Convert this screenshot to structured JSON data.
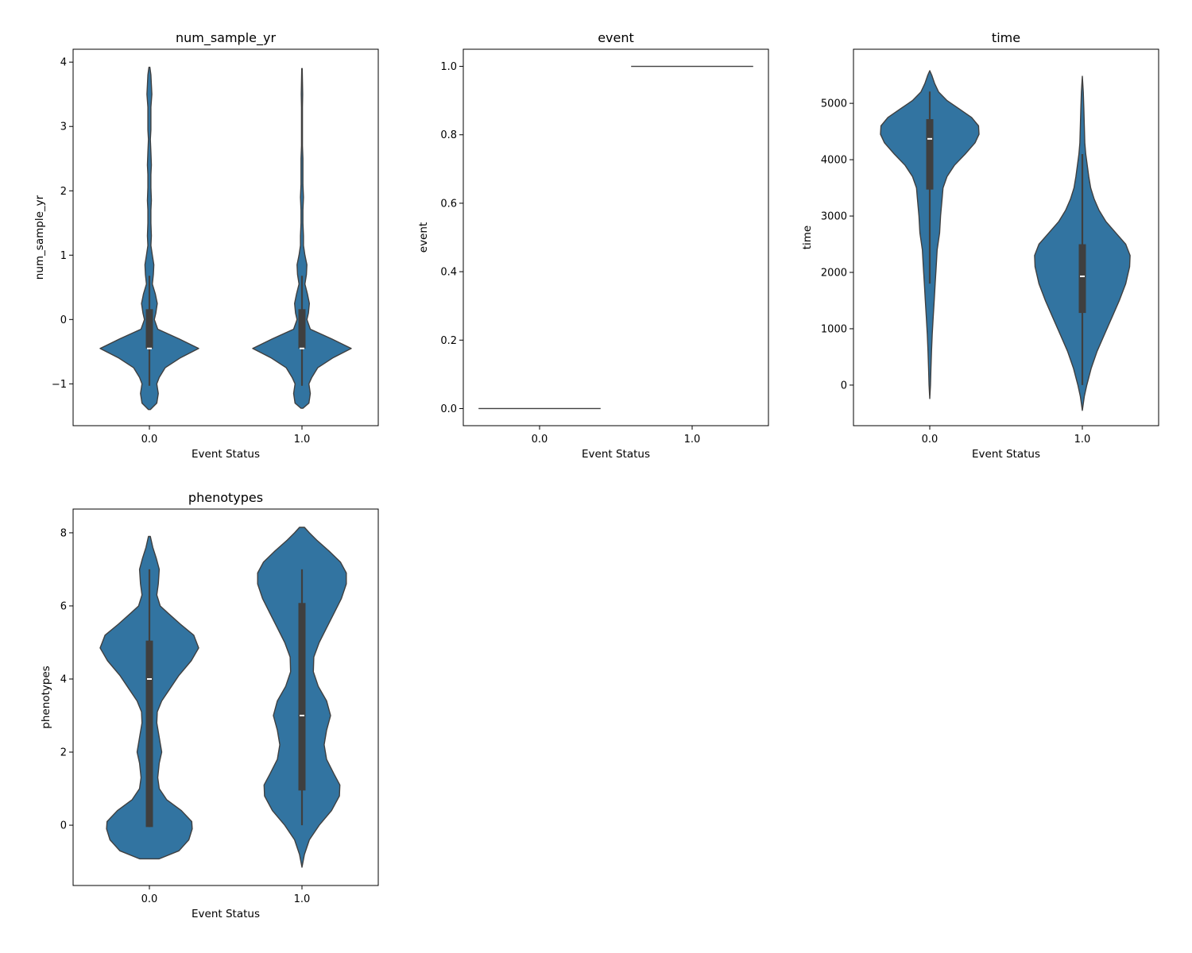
{
  "chart_data": [
    {
      "type": "violin",
      "title": "num_sample_yr",
      "xlabel": "Event Status",
      "ylabel": "num_sample_yr",
      "categories": [
        "0.0",
        "1.0"
      ],
      "ylim": [
        -1.65,
        4.2
      ],
      "yticks": [
        -1,
        0,
        1,
        2,
        3,
        4
      ],
      "ytick_labels": [
        "−1",
        "0",
        "1",
        "2",
        "3",
        "4"
      ],
      "violin_color": "#3274a1",
      "violins": [
        {
          "category": "0.0",
          "box": {
            "q1": -0.45,
            "median": -0.45,
            "q3": 0.16,
            "whisker_low": -1.03,
            "whisker_high": 0.68
          },
          "density": [
            [
              -1.4,
              0.02
            ],
            [
              -1.3,
              0.15
            ],
            [
              -1.15,
              0.18
            ],
            [
              -1.0,
              0.15
            ],
            [
              -0.9,
              0.2
            ],
            [
              -0.75,
              0.32
            ],
            [
              -0.6,
              0.62
            ],
            [
              -0.45,
              1.0
            ],
            [
              -0.3,
              0.6
            ],
            [
              -0.15,
              0.17
            ],
            [
              0.0,
              0.1
            ],
            [
              0.1,
              0.13
            ],
            [
              0.25,
              0.16
            ],
            [
              0.4,
              0.12
            ],
            [
              0.55,
              0.06
            ],
            [
              0.7,
              0.08
            ],
            [
              0.85,
              0.09
            ],
            [
              1.0,
              0.06
            ],
            [
              1.15,
              0.03
            ],
            [
              1.3,
              0.04
            ],
            [
              1.5,
              0.03
            ],
            [
              1.7,
              0.03
            ],
            [
              1.85,
              0.04
            ],
            [
              2.05,
              0.03
            ],
            [
              2.25,
              0.03
            ],
            [
              2.4,
              0.04
            ],
            [
              2.6,
              0.03
            ],
            [
              2.8,
              0.02
            ],
            [
              2.95,
              0.03
            ],
            [
              3.1,
              0.03
            ],
            [
              3.3,
              0.03
            ],
            [
              3.5,
              0.05
            ],
            [
              3.65,
              0.04
            ],
            [
              3.8,
              0.03
            ],
            [
              3.92,
              0.01
            ]
          ]
        },
        {
          "category": "1.0",
          "box": {
            "q1": -0.45,
            "median": -0.45,
            "q3": 0.16,
            "whisker_low": -1.03,
            "whisker_high": 0.68
          },
          "density": [
            [
              -1.38,
              0.02
            ],
            [
              -1.3,
              0.14
            ],
            [
              -1.15,
              0.17
            ],
            [
              -1.0,
              0.14
            ],
            [
              -0.9,
              0.2
            ],
            [
              -0.75,
              0.32
            ],
            [
              -0.6,
              0.62
            ],
            [
              -0.45,
              1.0
            ],
            [
              -0.3,
              0.6
            ],
            [
              -0.15,
              0.17
            ],
            [
              0.0,
              0.1
            ],
            [
              0.1,
              0.13
            ],
            [
              0.25,
              0.15
            ],
            [
              0.4,
              0.11
            ],
            [
              0.55,
              0.06
            ],
            [
              0.7,
              0.09
            ],
            [
              0.85,
              0.1
            ],
            [
              1.0,
              0.06
            ],
            [
              1.15,
              0.03
            ],
            [
              1.3,
              0.03
            ],
            [
              1.5,
              0.02
            ],
            [
              1.7,
              0.02
            ],
            [
              1.9,
              0.03
            ],
            [
              2.1,
              0.02
            ],
            [
              2.3,
              0.02
            ],
            [
              2.5,
              0.02
            ],
            [
              2.7,
              0.01
            ],
            [
              3.0,
              0.01
            ],
            [
              3.3,
              0.01
            ],
            [
              3.5,
              0.015
            ],
            [
              3.7,
              0.01
            ],
            [
              3.9,
              0.005
            ]
          ]
        }
      ]
    },
    {
      "type": "violin",
      "title": "event",
      "xlabel": "Event Status",
      "ylabel": "event",
      "categories": [
        "0.0",
        "1.0"
      ],
      "ylim": [
        -0.05,
        1.05
      ],
      "yticks": [
        0.0,
        0.2,
        0.4,
        0.6,
        0.8,
        1.0
      ],
      "ytick_labels": [
        "0.0",
        "0.2",
        "0.4",
        "0.6",
        "0.8",
        "1.0"
      ],
      "violin_color": "#3274a1",
      "degenerate_lines": [
        {
          "category": "0.0",
          "value": 0.0
        },
        {
          "category": "1.0",
          "value": 1.0
        }
      ]
    },
    {
      "type": "violin",
      "title": "time",
      "xlabel": "Event Status",
      "ylabel": "time",
      "categories": [
        "0.0",
        "1.0"
      ],
      "ylim": [
        -720,
        5960
      ],
      "yticks": [
        0,
        1000,
        2000,
        3000,
        4000,
        5000
      ],
      "ytick_labels": [
        "0",
        "1000",
        "2000",
        "3000",
        "4000",
        "5000"
      ],
      "violin_color": "#3274a1",
      "violins": [
        {
          "category": "0.0",
          "box": {
            "q1": 3470,
            "median": 4370,
            "q3": 4720,
            "whisker_low": 1800,
            "whisker_high": 5210
          },
          "density": [
            [
              -240,
              0.0
            ],
            [
              0,
              0.015
            ],
            [
              300,
              0.025
            ],
            [
              600,
              0.035
            ],
            [
              900,
              0.05
            ],
            [
              1200,
              0.07
            ],
            [
              1500,
              0.09
            ],
            [
              1800,
              0.11
            ],
            [
              2100,
              0.13
            ],
            [
              2400,
              0.15
            ],
            [
              2700,
              0.2
            ],
            [
              3000,
              0.22
            ],
            [
              3300,
              0.25
            ],
            [
              3500,
              0.27
            ],
            [
              3700,
              0.35
            ],
            [
              3900,
              0.5
            ],
            [
              4100,
              0.72
            ],
            [
              4300,
              0.92
            ],
            [
              4450,
              1.0
            ],
            [
              4600,
              0.99
            ],
            [
              4750,
              0.85
            ],
            [
              4900,
              0.6
            ],
            [
              5050,
              0.35
            ],
            [
              5200,
              0.18
            ],
            [
              5350,
              0.1
            ],
            [
              5500,
              0.04
            ],
            [
              5580,
              0.0
            ]
          ]
        },
        {
          "category": "1.0",
          "box": {
            "q1": 1280,
            "median": 1930,
            "q3": 2500,
            "whisker_low": 0,
            "whisker_high": 4100
          },
          "density": [
            [
              -450,
              0.0
            ],
            [
              -200,
              0.04
            ],
            [
              0,
              0.09
            ],
            [
              300,
              0.18
            ],
            [
              600,
              0.3
            ],
            [
              900,
              0.45
            ],
            [
              1200,
              0.6
            ],
            [
              1500,
              0.75
            ],
            [
              1800,
              0.88
            ],
            [
              2100,
              0.96
            ],
            [
              2300,
              0.97
            ],
            [
              2500,
              0.88
            ],
            [
              2700,
              0.68
            ],
            [
              2900,
              0.48
            ],
            [
              3100,
              0.34
            ],
            [
              3300,
              0.24
            ],
            [
              3500,
              0.17
            ],
            [
              3700,
              0.13
            ],
            [
              3900,
              0.1
            ],
            [
              4100,
              0.07
            ],
            [
              4300,
              0.05
            ],
            [
              4600,
              0.04
            ],
            [
              4900,
              0.03
            ],
            [
              5200,
              0.02
            ],
            [
              5480,
              0.0
            ]
          ]
        }
      ]
    },
    {
      "type": "violin",
      "title": "phenotypes",
      "xlabel": "Event Status",
      "ylabel": "phenotypes",
      "categories": [
        "0.0",
        "1.0"
      ],
      "ylim": [
        -1.65,
        8.65
      ],
      "yticks": [
        0,
        2,
        4,
        6,
        8
      ],
      "ytick_labels": [
        "0",
        "2",
        "4",
        "6",
        "8"
      ],
      "violin_color": "#3274a1",
      "violins": [
        {
          "category": "0.0",
          "box": {
            "q1": -0.05,
            "median": 4.0,
            "q3": 5.05,
            "whisker_low": -0.05,
            "whisker_high": 7.0
          },
          "density": [
            [
              -0.92,
              0.2
            ],
            [
              -0.7,
              0.6
            ],
            [
              -0.4,
              0.8
            ],
            [
              -0.1,
              0.87
            ],
            [
              0.1,
              0.86
            ],
            [
              0.4,
              0.65
            ],
            [
              0.7,
              0.35
            ],
            [
              1.0,
              0.2
            ],
            [
              1.3,
              0.17
            ],
            [
              1.7,
              0.2
            ],
            [
              2.0,
              0.25
            ],
            [
              2.4,
              0.2
            ],
            [
              2.8,
              0.15
            ],
            [
              3.1,
              0.16
            ],
            [
              3.4,
              0.25
            ],
            [
              3.7,
              0.4
            ],
            [
              4.1,
              0.6
            ],
            [
              4.5,
              0.85
            ],
            [
              4.85,
              1.0
            ],
            [
              5.2,
              0.9
            ],
            [
              5.5,
              0.63
            ],
            [
              5.8,
              0.38
            ],
            [
              6.0,
              0.22
            ],
            [
              6.3,
              0.15
            ],
            [
              6.6,
              0.18
            ],
            [
              7.0,
              0.2
            ],
            [
              7.3,
              0.14
            ],
            [
              7.6,
              0.07
            ],
            [
              7.9,
              0.02
            ]
          ]
        },
        {
          "category": "1.0",
          "box": {
            "q1": 0.95,
            "median": 3.0,
            "q3": 6.08,
            "whisker_low": 0.0,
            "whisker_high": 7.0
          },
          "density": [
            [
              -1.15,
              0.0
            ],
            [
              -0.8,
              0.05
            ],
            [
              -0.4,
              0.15
            ],
            [
              0.0,
              0.35
            ],
            [
              0.4,
              0.6
            ],
            [
              0.8,
              0.76
            ],
            [
              1.1,
              0.77
            ],
            [
              1.4,
              0.65
            ],
            [
              1.8,
              0.5
            ],
            [
              2.2,
              0.45
            ],
            [
              2.6,
              0.5
            ],
            [
              3.0,
              0.58
            ],
            [
              3.4,
              0.5
            ],
            [
              3.8,
              0.33
            ],
            [
              4.2,
              0.23
            ],
            [
              4.6,
              0.24
            ],
            [
              5.0,
              0.35
            ],
            [
              5.4,
              0.5
            ],
            [
              5.8,
              0.65
            ],
            [
              6.2,
              0.8
            ],
            [
              6.6,
              0.9
            ],
            [
              6.9,
              0.9
            ],
            [
              7.2,
              0.78
            ],
            [
              7.5,
              0.55
            ],
            [
              7.8,
              0.3
            ],
            [
              8.0,
              0.15
            ],
            [
              8.15,
              0.05
            ]
          ]
        }
      ]
    }
  ]
}
